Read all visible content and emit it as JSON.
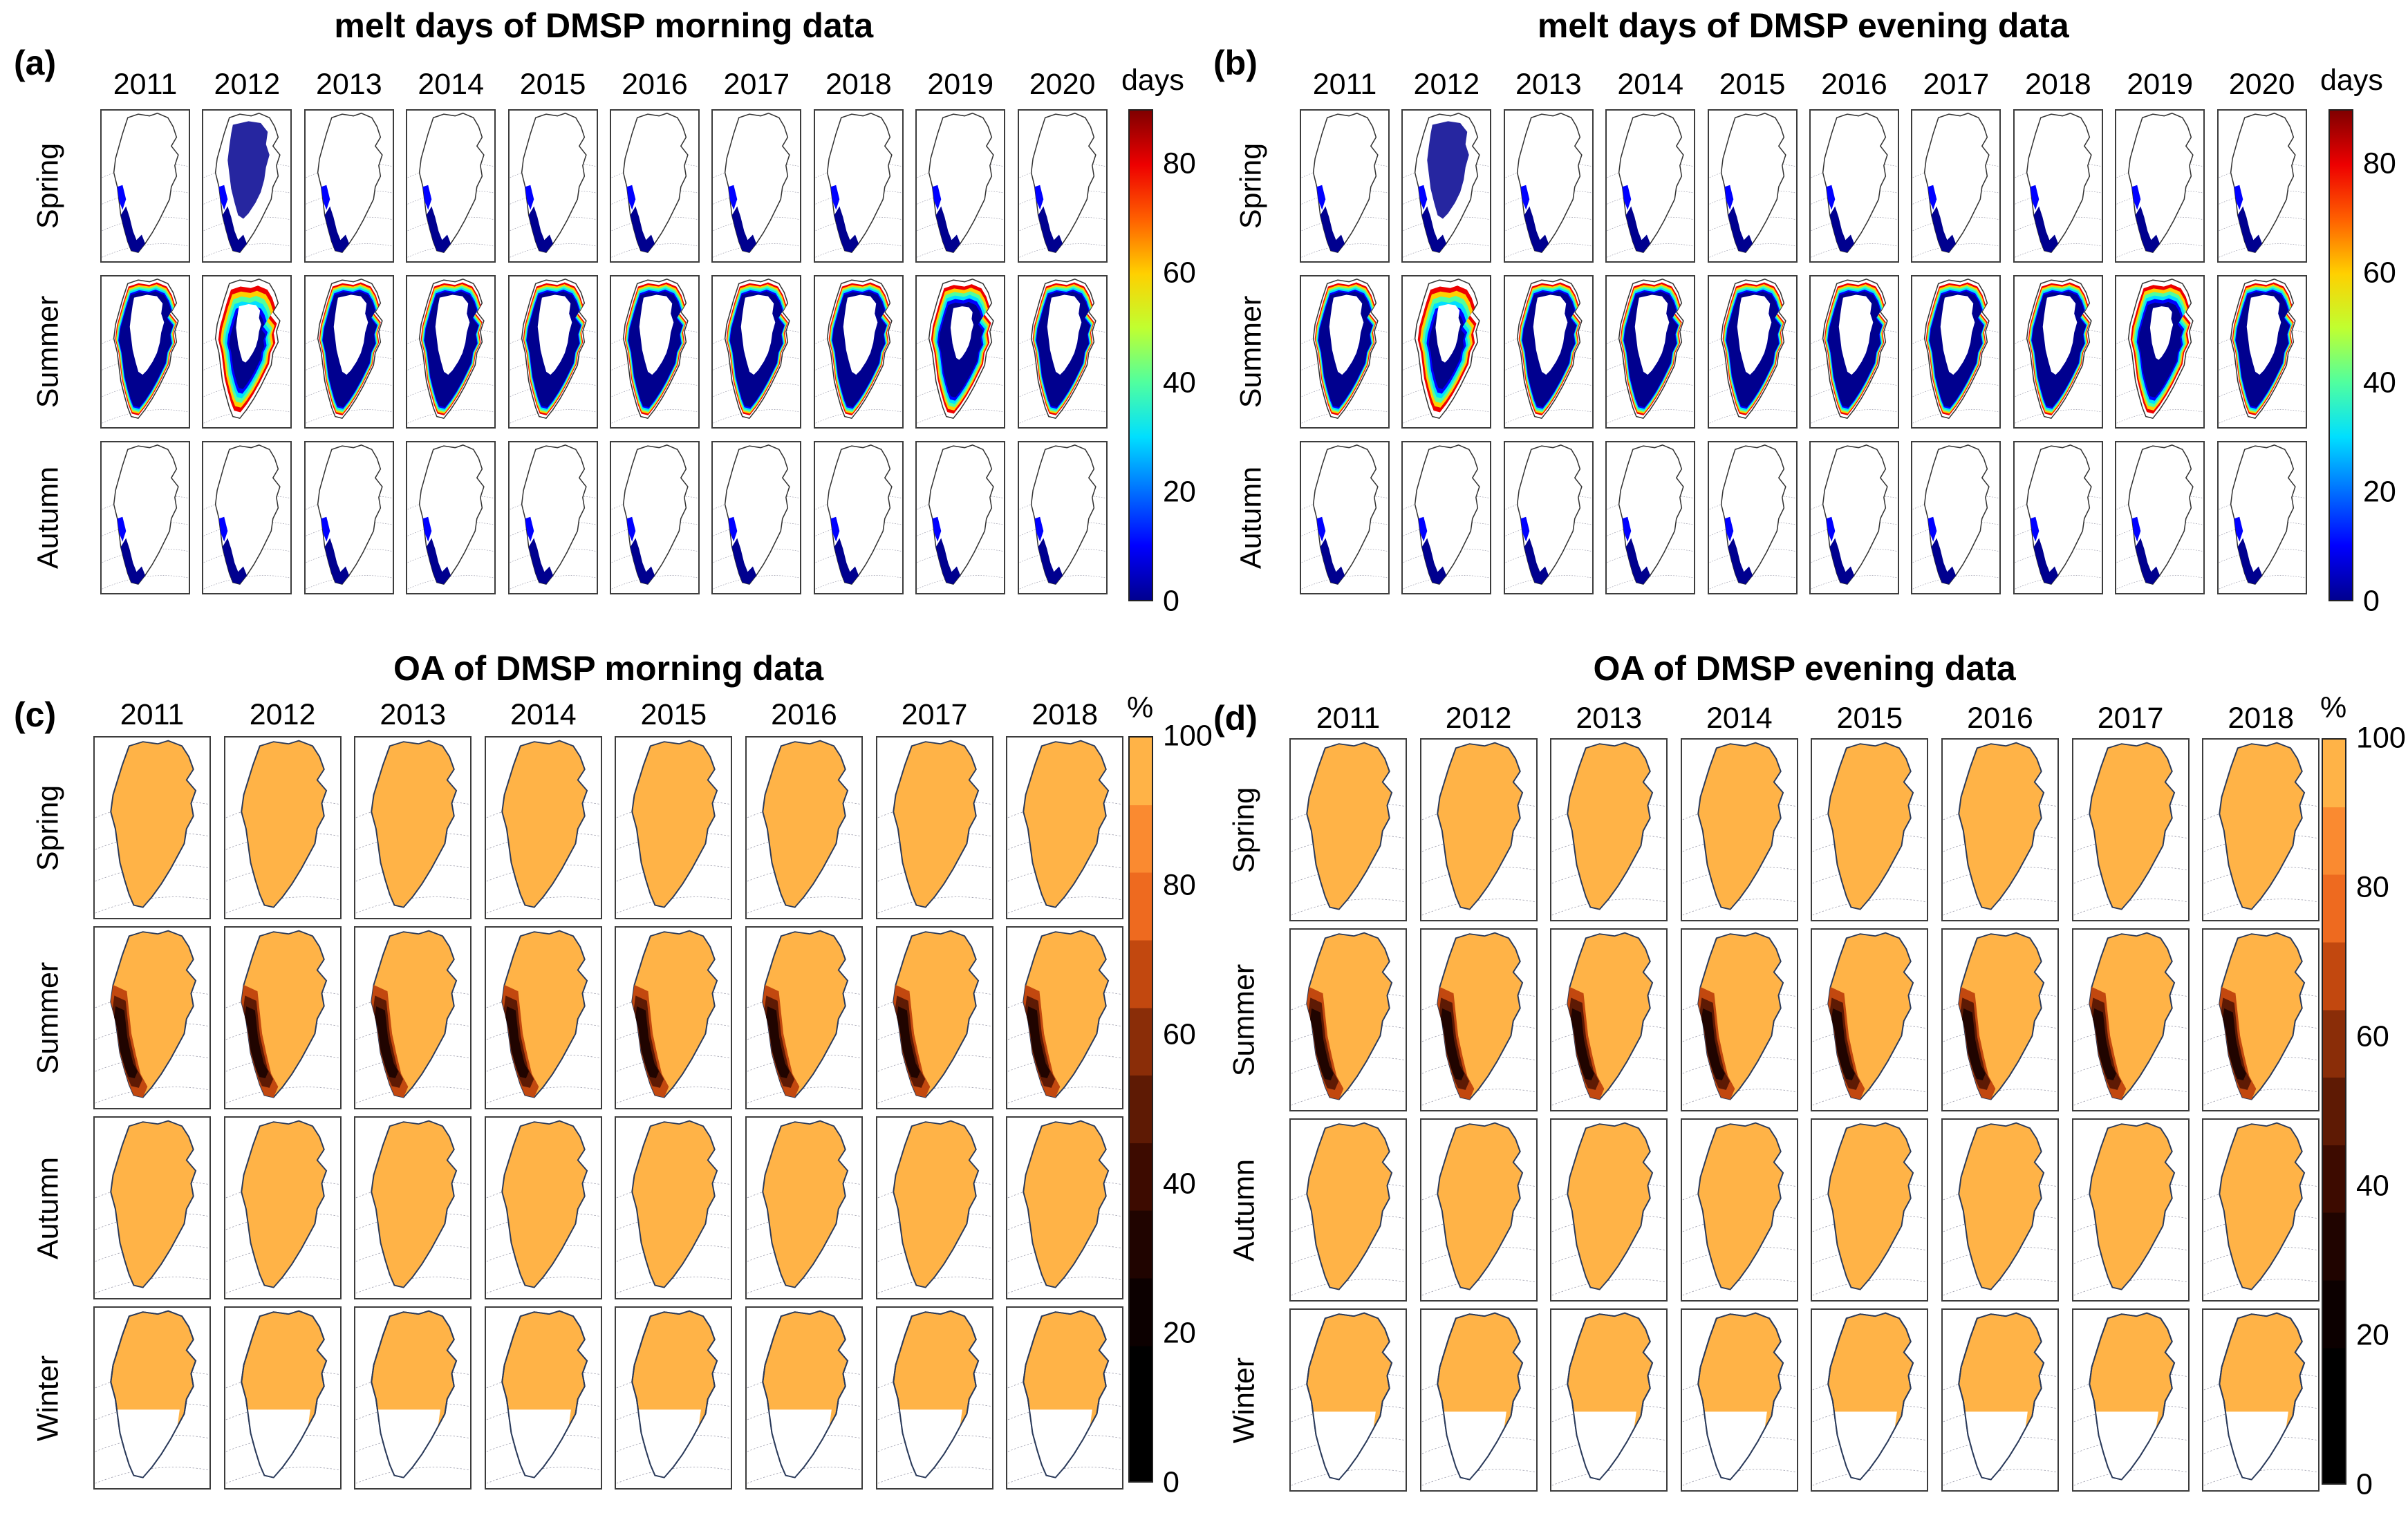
{
  "panels": [
    {
      "label": "(a)",
      "title": "melt days of DMSP morning data",
      "years": [
        "2011",
        "2012",
        "2013",
        "2014",
        "2015",
        "2016",
        "2017",
        "2018",
        "2019",
        "2020"
      ],
      "seasons": [
        "Spring",
        "Summer",
        "Autumn"
      ],
      "colorbar": {
        "unit": "days",
        "ticks": [
          "0",
          "20",
          "40",
          "60",
          "80"
        ],
        "range": [
          0,
          90
        ],
        "scheme": "jet",
        "colors": [
          "#00008f",
          "#0000ff",
          "#0070ff",
          "#00dfff",
          "#50ff9f",
          "#c0ff30",
          "#ffd000",
          "#ff6000",
          "#ee0000",
          "#800000"
        ]
      }
    },
    {
      "label": "(b)",
      "title": "melt days of DMSP evening data",
      "years": [
        "2011",
        "2012",
        "2013",
        "2014",
        "2015",
        "2016",
        "2017",
        "2018",
        "2019",
        "2020"
      ],
      "seasons": [
        "Spring",
        "Summer",
        "Autumn"
      ],
      "colorbar": {
        "unit": "days",
        "ticks": [
          "0",
          "20",
          "40",
          "60",
          "80"
        ],
        "range": [
          0,
          90
        ],
        "scheme": "jet",
        "colors": [
          "#00008f",
          "#0000ff",
          "#0070ff",
          "#00dfff",
          "#50ff9f",
          "#c0ff30",
          "#ffd000",
          "#ff6000",
          "#ee0000",
          "#800000"
        ]
      }
    },
    {
      "label": "(c)",
      "title": "OA of DMSP morning data",
      "years": [
        "2011",
        "2012",
        "2013",
        "2014",
        "2015",
        "2016",
        "2017",
        "2018"
      ],
      "seasons": [
        "Spring",
        "Summer",
        "Autumn",
        "Winter"
      ],
      "colorbar": {
        "unit": "%",
        "ticks": [
          "0",
          "20",
          "40",
          "60",
          "80",
          "100"
        ],
        "range": [
          0,
          100
        ],
        "scheme": "hot",
        "colors": [
          "#000000",
          "#000000",
          "#0c0000",
          "#200400",
          "#3d0b00",
          "#5e1a04",
          "#8a2d08",
          "#c2480f",
          "#ee6a1f",
          "#fa8a30",
          "#ffb347"
        ]
      }
    },
    {
      "label": "(d)",
      "title": "OA of DMSP evening data",
      "years": [
        "2011",
        "2012",
        "2013",
        "2014",
        "2015",
        "2016",
        "2017",
        "2018"
      ],
      "seasons": [
        "Spring",
        "Summer",
        "Autumn",
        "Winter"
      ],
      "colorbar": {
        "unit": "%",
        "ticks": [
          "0",
          "20",
          "40",
          "60",
          "80",
          "100"
        ],
        "range": [
          0,
          100
        ],
        "scheme": "hot",
        "colors": [
          "#000000",
          "#000000",
          "#0c0000",
          "#200400",
          "#3d0b00",
          "#5e1a04",
          "#8a2d08",
          "#c2480f",
          "#ee6a1f",
          "#fa8a30",
          "#ffb347"
        ]
      }
    }
  ]
}
